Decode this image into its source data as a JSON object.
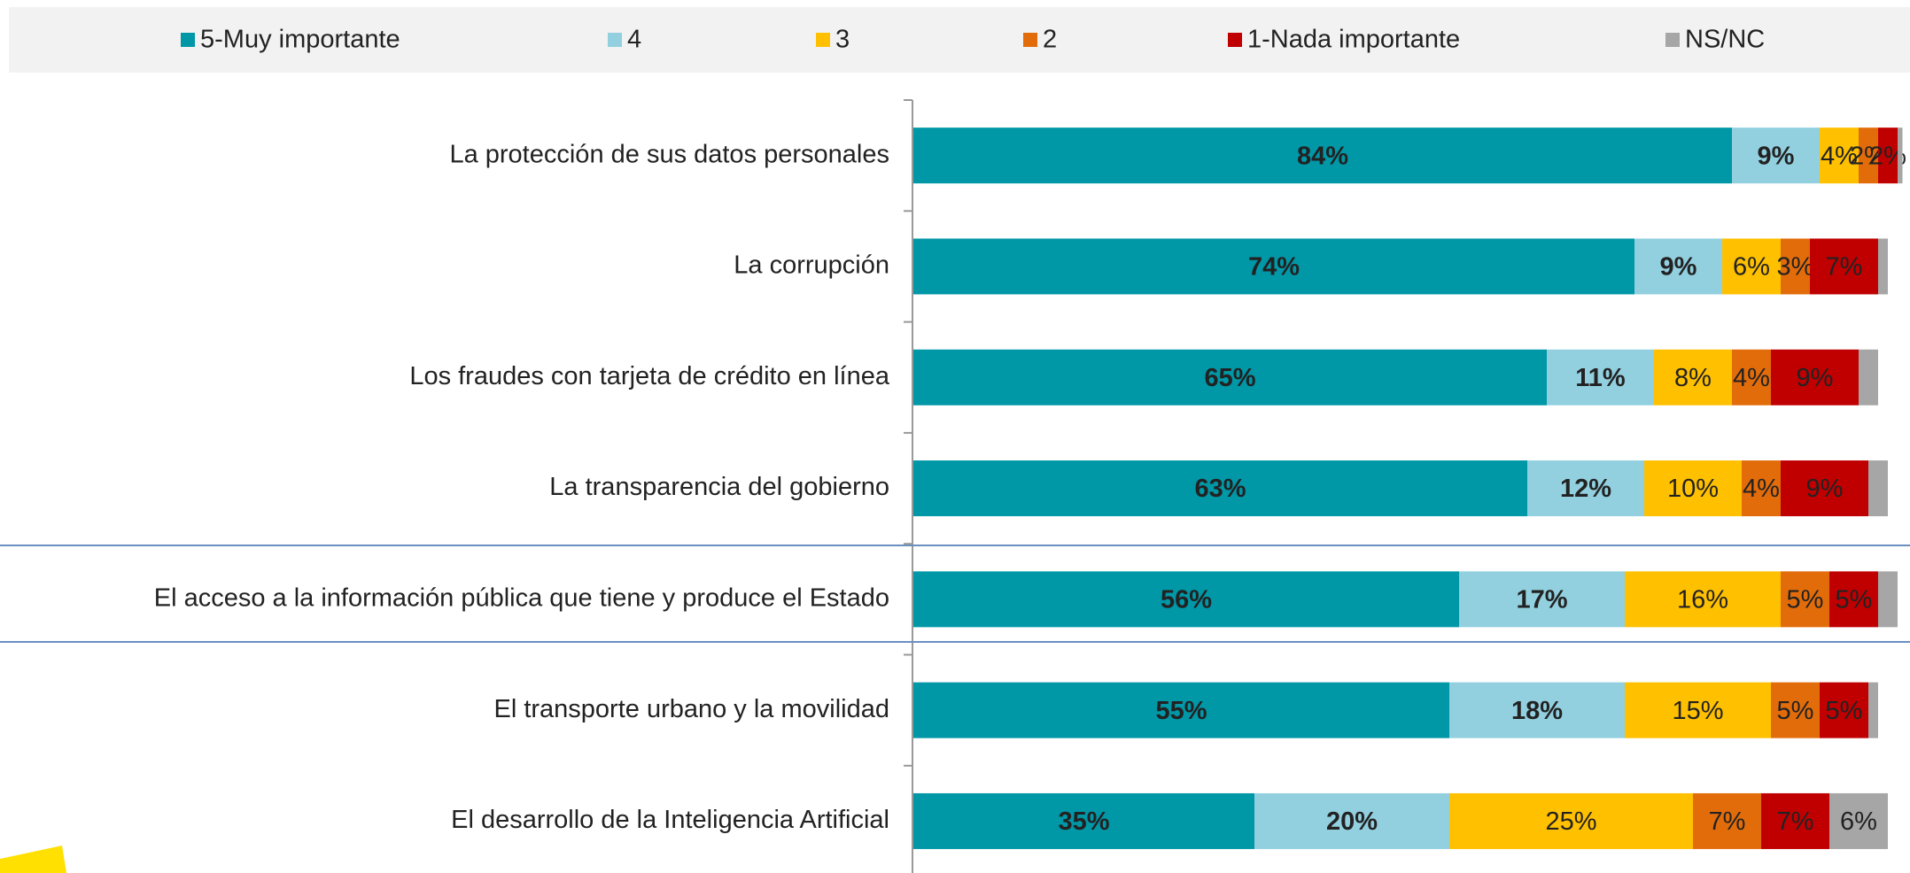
{
  "chart_data": {
    "type": "stacked-bar-horizontal",
    "categories": [
      "La protección de sus datos personales",
      "La corrupción",
      "Los fraudes con tarjeta de crédito en línea",
      "La transparencia del gobierno",
      "El acceso a la información pública que tiene y produce el Estado",
      "El transporte urbano y la movilidad",
      "El desarrollo de la Inteligencia Artificial"
    ],
    "series": [
      {
        "name": "5-Muy importante",
        "color": "#0097a7",
        "values": [
          84,
          74,
          65,
          63,
          56,
          55,
          35
        ],
        "value_labels": [
          "84%",
          "74%",
          "65%",
          "63%",
          "56%",
          "55%",
          "35%"
        ]
      },
      {
        "name": "4",
        "color": "#92d0e0",
        "values": [
          9,
          9,
          11,
          12,
          17,
          18,
          20
        ],
        "value_labels": [
          "9%",
          "9%",
          "11%",
          "12%",
          "17%",
          "18%",
          "20%"
        ]
      },
      {
        "name": "3",
        "color": "#ffc000",
        "values": [
          4,
          6,
          8,
          10,
          16,
          15,
          25
        ],
        "value_labels": [
          "4%",
          "6%",
          "8%",
          "10%",
          "16%",
          "15%",
          "25%"
        ]
      },
      {
        "name": "2",
        "color": "#e36c0a",
        "values": [
          2,
          3,
          4,
          4,
          5,
          5,
          7
        ],
        "value_labels": [
          "2%",
          "3%",
          "4%",
          "4%",
          "5%",
          "5%",
          "7%"
        ]
      },
      {
        "name": "1-Nada importante",
        "color": "#c00000",
        "values": [
          2,
          7,
          9,
          9,
          5,
          5,
          7
        ],
        "value_labels": [
          "2%",
          "7%",
          "9%",
          "9%",
          "5%",
          "5%",
          "7%"
        ]
      },
      {
        "name": "NS/NC",
        "color": "#a6a6a6",
        "values": [
          0.5,
          1,
          2,
          2,
          2,
          1,
          6
        ],
        "value_labels": [
          null,
          null,
          null,
          null,
          null,
          null,
          "6%"
        ]
      }
    ],
    "legend": "top"
  }
}
